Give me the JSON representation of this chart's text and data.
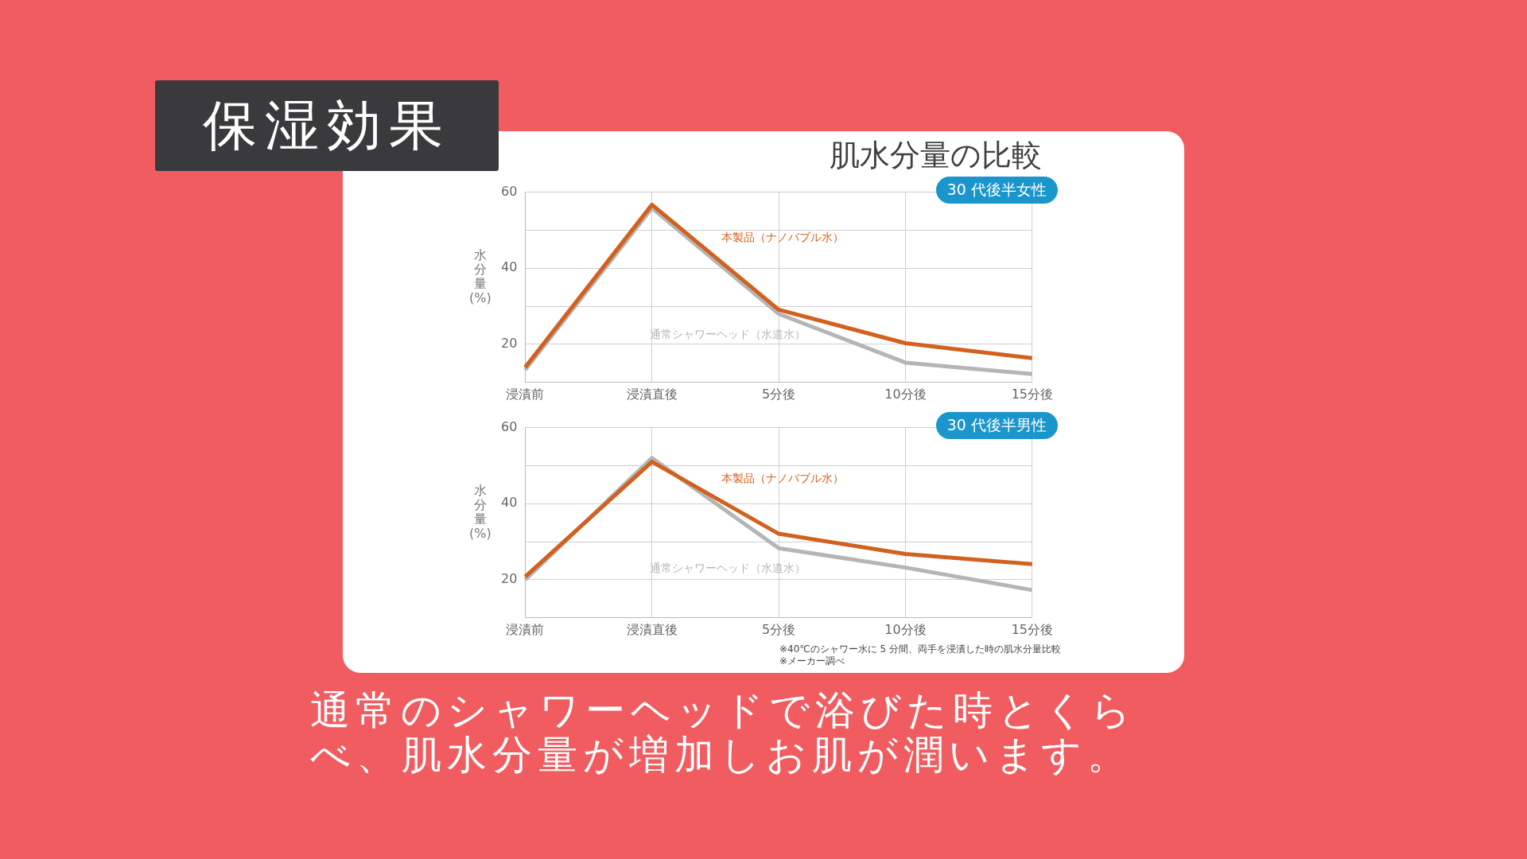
{
  "chart_data": [
    {
      "type": "line",
      "title": "肌水分量の比較",
      "subtitle": "30 代後半女性",
      "ylabel": "水分量(%)",
      "annotations": [
        "保湿効果"
      ],
      "categories": [
        "浸漬前",
        "浸漬直後",
        "5分後",
        "10分後",
        "15分後"
      ],
      "series": [
        {
          "name": "本製品（ナノバブル水）",
          "color": "#d2601e",
          "values": [
            14.0,
            56.7,
            29.1,
            20.3,
            16.4
          ]
        },
        {
          "name": "通常シャワーヘッド（水道水）",
          "color": "#b5b5b5",
          "values": [
            13.3,
            55.8,
            28.0,
            15.2,
            12.2
          ]
        }
      ],
      "ylim": [
        10,
        60
      ],
      "yticks": [
        {
          "value": 10,
          "label": null
        },
        20,
        {
          "value": 30,
          "label": null
        },
        40,
        {
          "value": 50,
          "label": null
        },
        60
      ],
      "grid": true,
      "legend": false,
      "marker": "none",
      "line_style": "solid"
    },
    {
      "type": "line",
      "subtitle": "30 代後半男性",
      "ylabel": "水分量(%)",
      "annotations": [
        "※40℃のシャワー水に 5 分間、両手を浸漬した時の肌水分量比較",
        "※メーカー調べ",
        "通常のシャワーヘッドで浴びた時とくらべ、肌水分量が増加しお肌が潤います。"
      ],
      "categories": [
        "浸漬前",
        "浸漬直後",
        "5分後",
        "10分後",
        "15分後"
      ],
      "series": [
        {
          "name": "本製品（ナノバブル水）",
          "color": "#d2601e",
          "values": [
            20.8,
            51.0,
            32.1,
            26.8,
            24.1
          ]
        },
        {
          "name": "通常シャワーヘッド（水道水）",
          "color": "#b5b5b5",
          "values": [
            20.0,
            52.0,
            28.3,
            23.2,
            17.3
          ]
        }
      ],
      "ylim": [
        10,
        60
      ],
      "yticks": [
        {
          "value": 10,
          "label": null
        },
        20,
        {
          "value": 30,
          "label": null
        },
        40,
        {
          "value": 50,
          "label": null
        },
        60
      ],
      "grid": true,
      "legend": false,
      "marker": "none",
      "line_style": "solid"
    }
  ]
}
